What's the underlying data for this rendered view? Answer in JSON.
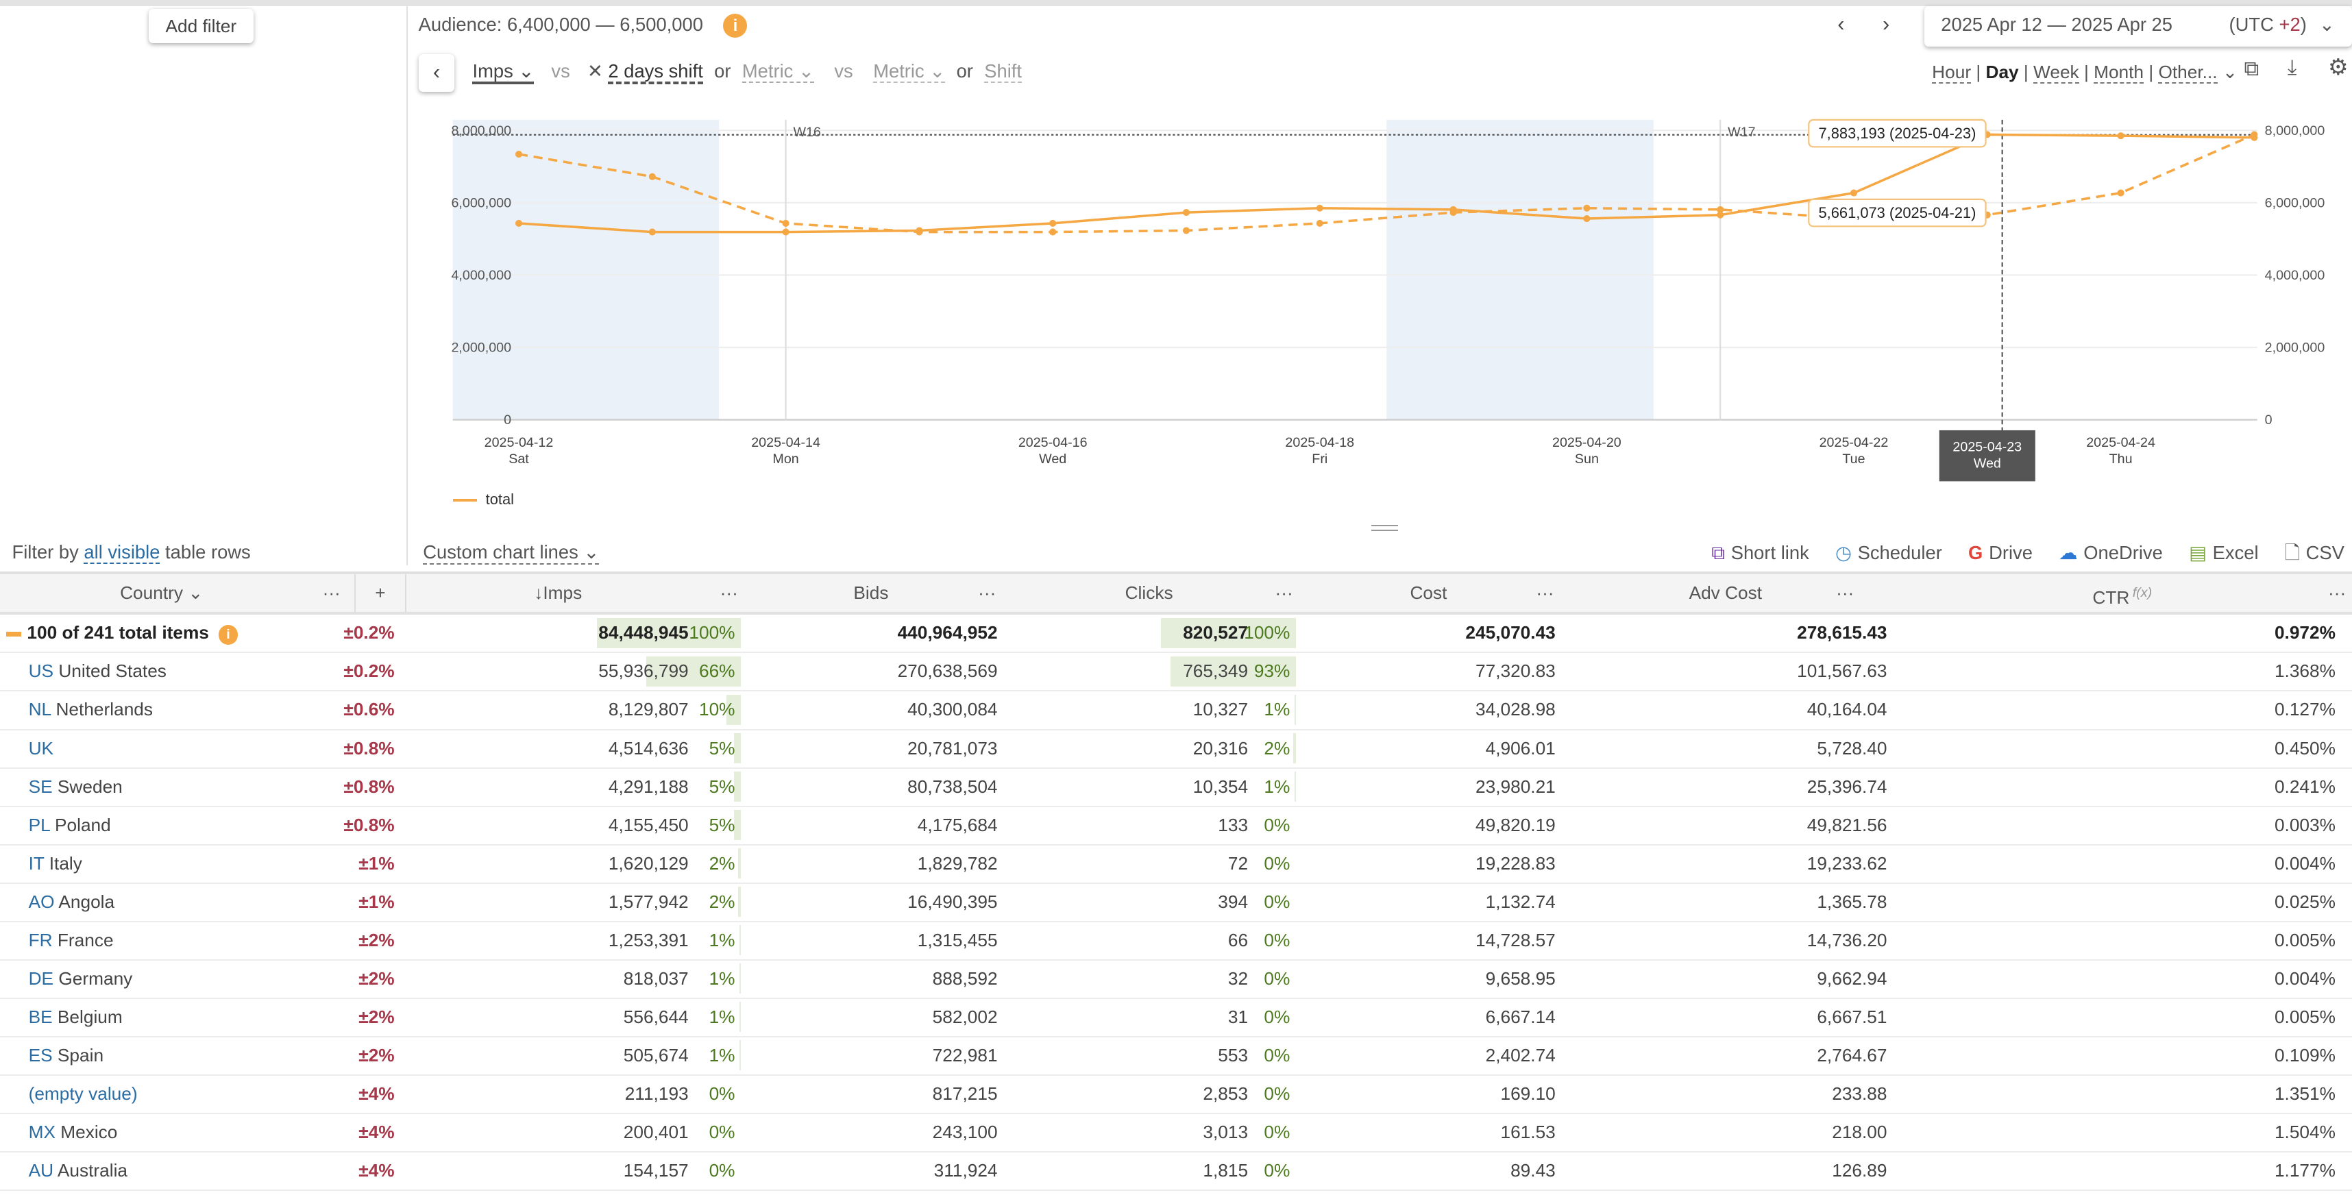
{
  "filters": {
    "add_filter": "Add filter",
    "filter_by_prefix": "Filter by",
    "filter_by_link": "all visible",
    "filter_by_suffix": "table rows"
  },
  "audience": {
    "text": "Audience: 6,400,000 — 6,500,000"
  },
  "date_range": {
    "value": "2025 Apr 12 — 2025 Apr 25",
    "tz_prefix": "(UTC ",
    "tz_offset": "+2",
    "tz_suffix": ")"
  },
  "metrics": {
    "metric1": "Imps",
    "vs1": "vs",
    "shift": "2 days shift",
    "or1": "or",
    "metric2": "Metric",
    "vs2": "vs",
    "metric3": "Metric",
    "or2": "or",
    "shift2": "Shift"
  },
  "granularity": {
    "hour": "Hour",
    "day": "Day",
    "week": "Week",
    "month": "Month",
    "other": "Other...",
    "selected": "Day"
  },
  "chart_data": {
    "type": "line",
    "x": [
      "2025-04-12",
      "2025-04-13",
      "2025-04-14",
      "2025-04-15",
      "2025-04-16",
      "2025-04-17",
      "2025-04-18",
      "2025-04-19",
      "2025-04-20",
      "2025-04-21",
      "2025-04-22",
      "2025-04-23",
      "2025-04-24",
      "2025-04-25"
    ],
    "x_tick_labels": [
      {
        "date": "2025-04-12",
        "day": "Sat"
      },
      {
        "date": "2025-04-14",
        "day": "Mon"
      },
      {
        "date": "2025-04-16",
        "day": "Wed"
      },
      {
        "date": "2025-04-18",
        "day": "Fri"
      },
      {
        "date": "2025-04-20",
        "day": "Sun"
      },
      {
        "date": "2025-04-22",
        "day": "Tue"
      },
      {
        "date": "2025-04-24",
        "day": "Thu"
      }
    ],
    "y_ticks": [
      "0",
      "2,000,000",
      "4,000,000",
      "6,000,000",
      "8,000,000"
    ],
    "ylim": [
      0,
      8000000
    ],
    "series": [
      {
        "name": "total",
        "style": "solid",
        "values": [
          5430000,
          5190000,
          5190000,
          5230000,
          5430000,
          5730000,
          5850000,
          5810000,
          5560000,
          5661073,
          6270000,
          7883193,
          7850000,
          7800000
        ]
      },
      {
        "style": "dashed",
        "values": [
          7340000,
          6720000,
          5430000,
          5190000,
          5190000,
          5230000,
          5430000,
          5730000,
          5850000,
          5810000,
          5560000,
          5661073,
          6270000,
          7883193
        ]
      }
    ],
    "week_markers": [
      {
        "label": "W16",
        "date": "2025-04-14"
      },
      {
        "label": "W17",
        "date": "2025-04-21"
      }
    ],
    "weekends": [
      [
        "2025-04-12",
        "2025-04-13"
      ],
      [
        "2025-04-19",
        "2025-04-20"
      ]
    ],
    "tooltips": [
      "7,883,193 (2025-04-23)",
      "5,661,073 (2025-04-21)"
    ],
    "crosshair": {
      "date": "2025-04-23",
      "label_date": "2025-04-23",
      "label_day": "Wed"
    },
    "legend": "bottom-left",
    "color": "#f4a742"
  },
  "chart_controls": {
    "custom_lines": "Custom chart lines"
  },
  "exports": {
    "short_link": "Short link",
    "scheduler": "Scheduler",
    "drive": "Drive",
    "onedrive": "OneDrive",
    "excel": "Excel",
    "csv": "CSV"
  },
  "table": {
    "headers": {
      "country": "Country",
      "plus": "+",
      "imps": "↓Imps",
      "bids": "Bids",
      "clicks": "Clicks",
      "cost": "Cost",
      "adv_cost": "Adv Cost",
      "ctr": "CTR",
      "ctr_fx": "f(x)",
      "more": "···"
    },
    "total": {
      "label": "100 of 241 total items",
      "err": "±0.2%",
      "imps": "84,448,945",
      "imps_pct": "100%",
      "imps_share": 100,
      "bids": "440,964,952",
      "clicks": "820,527",
      "clicks_pct": "100%",
      "clicks_share": 100,
      "cost": "245,070.43",
      "adv_cost": "278,615.43",
      "ctr": "0.972%"
    },
    "rows": [
      {
        "code": "US",
        "name": "United States",
        "err": "±0.2%",
        "imps": "55,936,799",
        "imps_pct": "66%",
        "imps_share": 66,
        "bids": "270,638,569",
        "clicks": "765,349",
        "clicks_pct": "93%",
        "clicks_share": 93,
        "cost": "77,320.83",
        "adv_cost": "101,567.63",
        "ctr": "1.368%"
      },
      {
        "code": "NL",
        "name": "Netherlands",
        "err": "±0.6%",
        "imps": "8,129,807",
        "imps_pct": "10%",
        "imps_share": 10,
        "bids": "40,300,084",
        "clicks": "10,327",
        "clicks_pct": "1%",
        "clicks_share": 1,
        "cost": "34,028.98",
        "adv_cost": "40,164.04",
        "ctr": "0.127%"
      },
      {
        "code": "UK",
        "name": "",
        "err": "±0.8%",
        "imps": "4,514,636",
        "imps_pct": "5%",
        "imps_share": 5,
        "bids": "20,781,073",
        "clicks": "20,316",
        "clicks_pct": "2%",
        "clicks_share": 2,
        "cost": "4,906.01",
        "adv_cost": "5,728.40",
        "ctr": "0.450%"
      },
      {
        "code": "SE",
        "name": "Sweden",
        "err": "±0.8%",
        "imps": "4,291,188",
        "imps_pct": "5%",
        "imps_share": 5,
        "bids": "80,738,504",
        "clicks": "10,354",
        "clicks_pct": "1%",
        "clicks_share": 1,
        "cost": "23,980.21",
        "adv_cost": "25,396.74",
        "ctr": "0.241%"
      },
      {
        "code": "PL",
        "name": "Poland",
        "err": "±0.8%",
        "imps": "4,155,450",
        "imps_pct": "5%",
        "imps_share": 5,
        "bids": "4,175,684",
        "clicks": "133",
        "clicks_pct": "0%",
        "clicks_share": 0,
        "cost": "49,820.19",
        "adv_cost": "49,821.56",
        "ctr": "0.003%"
      },
      {
        "code": "IT",
        "name": "Italy",
        "err": "±1%",
        "imps": "1,620,129",
        "imps_pct": "2%",
        "imps_share": 2,
        "bids": "1,829,782",
        "clicks": "72",
        "clicks_pct": "0%",
        "clicks_share": 0,
        "cost": "19,228.83",
        "adv_cost": "19,233.62",
        "ctr": "0.004%"
      },
      {
        "code": "AO",
        "name": "Angola",
        "err": "±1%",
        "imps": "1,577,942",
        "imps_pct": "2%",
        "imps_share": 2,
        "bids": "16,490,395",
        "clicks": "394",
        "clicks_pct": "0%",
        "clicks_share": 0,
        "cost": "1,132.74",
        "adv_cost": "1,365.78",
        "ctr": "0.025%"
      },
      {
        "code": "FR",
        "name": "France",
        "err": "±2%",
        "imps": "1,253,391",
        "imps_pct": "1%",
        "imps_share": 1,
        "bids": "1,315,455",
        "clicks": "66",
        "clicks_pct": "0%",
        "clicks_share": 0,
        "cost": "14,728.57",
        "adv_cost": "14,736.20",
        "ctr": "0.005%"
      },
      {
        "code": "DE",
        "name": "Germany",
        "err": "±2%",
        "imps": "818,037",
        "imps_pct": "1%",
        "imps_share": 1,
        "bids": "888,592",
        "clicks": "32",
        "clicks_pct": "0%",
        "clicks_share": 0,
        "cost": "9,658.95",
        "adv_cost": "9,662.94",
        "ctr": "0.004%"
      },
      {
        "code": "BE",
        "name": "Belgium",
        "err": "±2%",
        "imps": "556,644",
        "imps_pct": "1%",
        "imps_share": 1,
        "bids": "582,002",
        "clicks": "31",
        "clicks_pct": "0%",
        "clicks_share": 0,
        "cost": "6,667.14",
        "adv_cost": "6,667.51",
        "ctr": "0.005%"
      },
      {
        "code": "ES",
        "name": "Spain",
        "err": "±2%",
        "imps": "505,674",
        "imps_pct": "1%",
        "imps_share": 1,
        "bids": "722,981",
        "clicks": "553",
        "clicks_pct": "0%",
        "clicks_share": 0,
        "cost": "2,402.74",
        "adv_cost": "2,764.67",
        "ctr": "0.109%"
      },
      {
        "code": "(empty value)",
        "name": "",
        "err": "±4%",
        "imps": "211,193",
        "imps_pct": "0%",
        "imps_share": 0,
        "bids": "817,215",
        "clicks": "2,853",
        "clicks_pct": "0%",
        "clicks_share": 0,
        "cost": "169.10",
        "adv_cost": "233.88",
        "ctr": "1.351%"
      },
      {
        "code": "MX",
        "name": "Mexico",
        "err": "±4%",
        "imps": "200,401",
        "imps_pct": "0%",
        "imps_share": 0,
        "bids": "243,100",
        "clicks": "3,013",
        "clicks_pct": "0%",
        "clicks_share": 0,
        "cost": "161.53",
        "adv_cost": "218.00",
        "ctr": "1.504%"
      },
      {
        "code": "AU",
        "name": "Australia",
        "err": "±4%",
        "imps": "154,157",
        "imps_pct": "0%",
        "imps_share": 0,
        "bids": "311,924",
        "clicks": "1,815",
        "clicks_pct": "0%",
        "clicks_share": 0,
        "cost": "89.43",
        "adv_cost": "126.89",
        "ctr": "1.177%"
      }
    ]
  }
}
